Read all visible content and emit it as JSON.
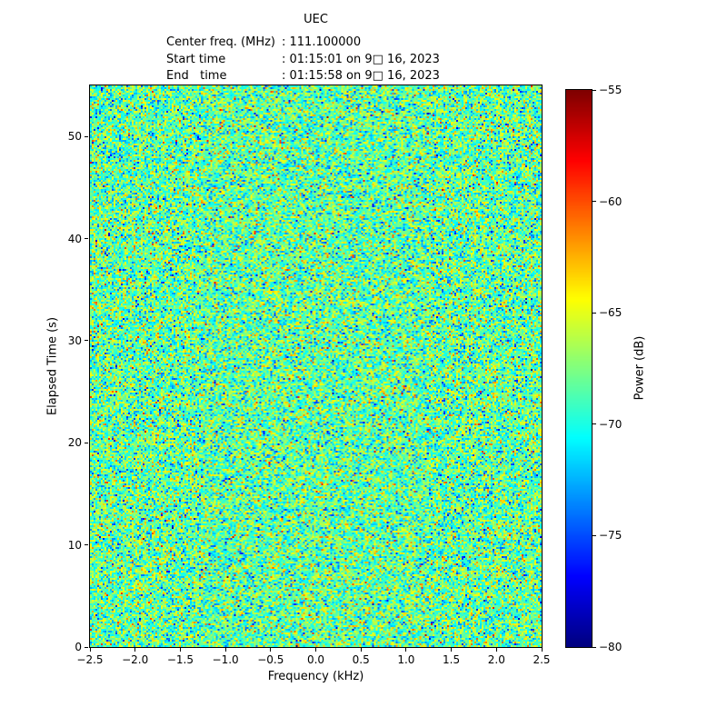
{
  "title": "UEC",
  "header": {
    "lines": [
      {
        "label": "Center freq. (MHz)",
        "value": ": 111.100000"
      },
      {
        "label": "Start time",
        "value": ": 01:15:01 on 9□ 16, 2023"
      },
      {
        "label": "End   time",
        "value": ": 01:15:58 on 9□ 16, 2023"
      }
    ]
  },
  "chart_data": {
    "type": "heatmap",
    "subtype": "spectrogram-waterfall",
    "title": "UEC",
    "xlabel": "Frequency (kHz)",
    "ylabel": "Elapsed Time (s)",
    "xlim": [
      -2.5,
      2.5
    ],
    "ylim": [
      0,
      55
    ],
    "xticks": [
      -2.5,
      -2.0,
      -1.5,
      -1.0,
      -0.5,
      0.0,
      0.5,
      1.0,
      1.5,
      2.0,
      2.5
    ],
    "xtick_labels": [
      "−2.5",
      "−2.0",
      "−1.5",
      "−1.0",
      "−0.5",
      "0.0",
      "0.5",
      "1.0",
      "1.5",
      "2.0",
      "2.5"
    ],
    "yticks": [
      0,
      10,
      20,
      30,
      40,
      50
    ],
    "ytick_labels": [
      "0",
      "10",
      "20",
      "30",
      "40",
      "50"
    ],
    "grid": false,
    "colormap": "jet",
    "legend": "none",
    "colorbar": {
      "label": "Power (dB)",
      "position": "right",
      "vmin": -80,
      "vmax": -55,
      "ticks": [
        -55,
        -60,
        -65,
        -70,
        -75,
        -80
      ],
      "tick_labels": [
        "−55",
        "−60",
        "−65",
        "−70",
        "−75",
        "−80"
      ]
    },
    "noise": {
      "description": "uniform broadband noise floor, no visible signal",
      "mean_db": -68.3,
      "std_db": 3.0,
      "seed": 20230916,
      "cols": 248,
      "rows": 309
    }
  }
}
